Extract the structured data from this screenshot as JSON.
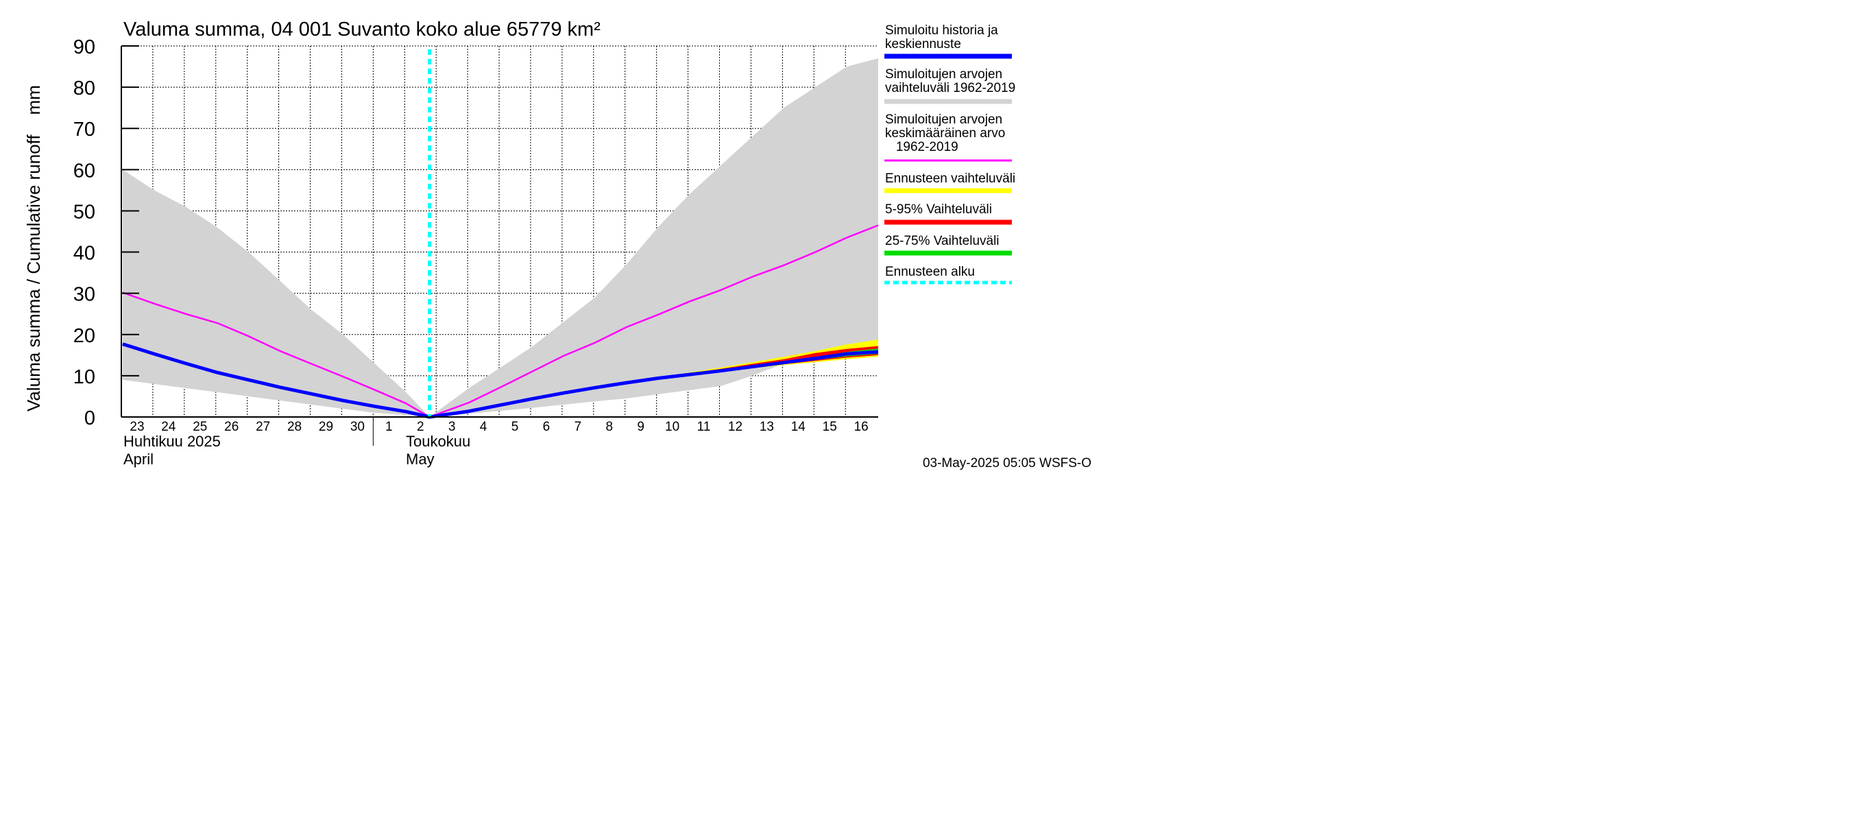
{
  "chart_data": {
    "type": "area",
    "title": "Valuma summa, 04 001 Suvanto koko alue 65779 km²",
    "ylabel": "Valuma summa / Cumulative runoff    mm",
    "ylim": [
      0,
      90
    ],
    "yticks": [
      0,
      10,
      20,
      30,
      40,
      50,
      60,
      70,
      80,
      90
    ],
    "xlim": [
      "2025-04-22T23:00",
      "2025-05-16T23:59"
    ],
    "grid": true,
    "x_tick_labels": [
      "23",
      "24",
      "25",
      "26",
      "27",
      "28",
      "29",
      "30",
      "1",
      "2",
      "3",
      "4",
      "5",
      "6",
      "7",
      "8",
      "9",
      "10",
      "11",
      "12",
      "13",
      "14",
      "15",
      "16"
    ],
    "month_labels": [
      {
        "name": "Huhtikuu  2025",
        "english": "April"
      },
      {
        "name": "Toukokuu",
        "english": "May"
      }
    ],
    "forecast_start": "2025-05-02T18:00",
    "footer": "03-May-2025 05:05 WSFS-O",
    "legend_position": "right",
    "legend": [
      {
        "label": "Simuloitu historia ja\nkeskiennuste",
        "color": "#0000ff",
        "style": "thick"
      },
      {
        "label": "Simuloitujen arvojen\nvaihteluväli 1962-2019",
        "color": "#d3d3d3",
        "style": "thick"
      },
      {
        "label": "Simuloitujen arvojen\nkeskimääräinen arvo\n   1962-2019",
        "color": "#ff00ff",
        "style": "thin"
      },
      {
        "label": "Ennusteen vaihteluväli",
        "color": "#ffff00",
        "style": "thick"
      },
      {
        "label": "5-95% Vaihteluväli",
        "color": "#ff0000",
        "style": "thick"
      },
      {
        "label": "25-75% Vaihteluväli",
        "color": "#00dd00",
        "style": "thick"
      },
      {
        "label": "Ennusteen alku",
        "color": "#00ffff",
        "style": "dashed"
      }
    ],
    "series": [
      {
        "name": "Simuloitujen arvojen vaihteluväli 1962-2019 (max)",
        "color": "#d3d3d3",
        "x": [
          "2025-04-23",
          "2025-04-24",
          "2025-04-25",
          "2025-04-26",
          "2025-04-27",
          "2025-04-28",
          "2025-04-29",
          "2025-04-30",
          "2025-05-01",
          "2025-05-02",
          "2025-05-02T18:00",
          "2025-05-04",
          "2025-05-05",
          "2025-05-06",
          "2025-05-07",
          "2025-05-08",
          "2025-05-09",
          "2025-05-10",
          "2025-05-11",
          "2025-05-12",
          "2025-05-13",
          "2025-05-14",
          "2025-05-15",
          "2025-05-16",
          "2025-05-16T23:59"
        ],
        "values": [
          60,
          55,
          51,
          46,
          40,
          33,
          26,
          20,
          13,
          6,
          0,
          7,
          12,
          17,
          23,
          29,
          37,
          46,
          54,
          61,
          68,
          75,
          80,
          85,
          87
        ]
      },
      {
        "name": "Simuloitujen arvojen vaihteluväli 1962-2019 (min)",
        "color": "#d3d3d3",
        "x": [
          "2025-04-23",
          "2025-04-24",
          "2025-04-25",
          "2025-04-26",
          "2025-04-27",
          "2025-04-28",
          "2025-04-29",
          "2025-04-30",
          "2025-05-01",
          "2025-05-02",
          "2025-05-02T18:00",
          "2025-05-04",
          "2025-05-05",
          "2025-05-06",
          "2025-05-07",
          "2025-05-08",
          "2025-05-09",
          "2025-05-10",
          "2025-05-11",
          "2025-05-12",
          "2025-05-13",
          "2025-05-14",
          "2025-05-15",
          "2025-05-16",
          "2025-05-16T23:59"
        ],
        "values": [
          9,
          8,
          7,
          6,
          5,
          4,
          3,
          2,
          1,
          0.5,
          0,
          0.8,
          1.5,
          2.2,
          3,
          3.8,
          4.5,
          5.5,
          6.5,
          7.5,
          10,
          13,
          14,
          15,
          16
        ]
      },
      {
        "name": "Simuloitujen arvojen keskimääräinen arvo 1962-2019",
        "color": "#ff00ff",
        "x": [
          "2025-04-23",
          "2025-04-24",
          "2025-04-25",
          "2025-04-26",
          "2025-04-27",
          "2025-04-28",
          "2025-04-29",
          "2025-04-30",
          "2025-05-01",
          "2025-05-02",
          "2025-05-02T18:00",
          "2025-05-04",
          "2025-05-05",
          "2025-05-06",
          "2025-05-07",
          "2025-05-08",
          "2025-05-09",
          "2025-05-10",
          "2025-05-11",
          "2025-05-12",
          "2025-05-13",
          "2025-05-14",
          "2025-05-15",
          "2025-05-16",
          "2025-05-16T23:59"
        ],
        "values": [
          30.2,
          27.5,
          25,
          22.8,
          19.6,
          16,
          12.9,
          9.8,
          6.6,
          3.3,
          0,
          3.5,
          7.2,
          11,
          14.8,
          18,
          21.8,
          24.8,
          28,
          30.8,
          34,
          36.8,
          40,
          43.5,
          46.5
        ]
      },
      {
        "name": "Simuloitu historia ja keskiennuste",
        "color": "#0000ff",
        "x": [
          "2025-04-23",
          "2025-04-24",
          "2025-04-25",
          "2025-04-26",
          "2025-04-27",
          "2025-04-28",
          "2025-04-29",
          "2025-04-30",
          "2025-05-01",
          "2025-05-02",
          "2025-05-02T18:00",
          "2025-05-04",
          "2025-05-05",
          "2025-05-06",
          "2025-05-07",
          "2025-05-08",
          "2025-05-09",
          "2025-05-10",
          "2025-05-11",
          "2025-05-12",
          "2025-05-13",
          "2025-05-14",
          "2025-05-15",
          "2025-05-16",
          "2025-05-16T23:59"
        ],
        "values": [
          17.7,
          15.3,
          13,
          10.8,
          9,
          7.2,
          5.6,
          4,
          2.6,
          1.3,
          0,
          1.4,
          2.9,
          4.4,
          5.8,
          7.1,
          8.3,
          9.4,
          10.3,
          11.2,
          12.2,
          13.2,
          14.2,
          15.3,
          15.8
        ]
      },
      {
        "name": "Ennusteen vaihteluväli (max)",
        "color": "#ffff00",
        "x": [
          "2025-05-02T18:00",
          "2025-05-04",
          "2025-05-05",
          "2025-05-06",
          "2025-05-07",
          "2025-05-08",
          "2025-05-09",
          "2025-05-10",
          "2025-05-11",
          "2025-05-12",
          "2025-05-13",
          "2025-05-14",
          "2025-05-15",
          "2025-05-16",
          "2025-05-16T23:59"
        ],
        "values": [
          0,
          1.5,
          3.0,
          4.5,
          5.9,
          7.2,
          8.4,
          9.6,
          10.8,
          12.0,
          13.3,
          14.6,
          16.0,
          17.6,
          18.8
        ]
      },
      {
        "name": "Ennusteen vaihteluväli (min)",
        "color": "#ffff00",
        "x": [
          "2025-05-02T18:00",
          "2025-05-04",
          "2025-05-05",
          "2025-05-06",
          "2025-05-07",
          "2025-05-08",
          "2025-05-09",
          "2025-05-10",
          "2025-05-11",
          "2025-05-12",
          "2025-05-13",
          "2025-05-14",
          "2025-05-15",
          "2025-05-16",
          "2025-05-16T23:59"
        ],
        "values": [
          0,
          1.3,
          2.8,
          4.3,
          5.7,
          7.0,
          8.2,
          9.2,
          10.1,
          10.9,
          11.8,
          12.6,
          13.3,
          14.0,
          14.6
        ]
      },
      {
        "name": "5-95% Vaihteluväli (max)",
        "color": "#ff0000",
        "x": [
          "2025-05-02T18:00",
          "2025-05-04",
          "2025-05-05",
          "2025-05-06",
          "2025-05-07",
          "2025-05-08",
          "2025-05-09",
          "2025-05-10",
          "2025-05-11",
          "2025-05-12",
          "2025-05-13",
          "2025-05-14",
          "2025-05-15",
          "2025-05-16",
          "2025-05-16T23:59"
        ],
        "values": [
          0,
          1.45,
          2.95,
          4.45,
          5.85,
          7.15,
          8.35,
          9.5,
          10.6,
          11.7,
          12.9,
          14.0,
          15.5,
          16.5,
          17.2
        ]
      },
      {
        "name": "5-95% Vaihteluväli (min)",
        "color": "#ff0000",
        "x": [
          "2025-05-02T18:00",
          "2025-05-04",
          "2025-05-05",
          "2025-05-06",
          "2025-05-07",
          "2025-05-08",
          "2025-05-09",
          "2025-05-10",
          "2025-05-11",
          "2025-05-12",
          "2025-05-13",
          "2025-05-14",
          "2025-05-15",
          "2025-05-16",
          "2025-05-16T23:59"
        ],
        "values": [
          0,
          1.35,
          2.85,
          4.35,
          5.75,
          7.05,
          8.25,
          9.3,
          10.2,
          11.0,
          11.9,
          12.8,
          13.6,
          14.4,
          15.0
        ]
      },
      {
        "name": "25-75% Vaihteluväli (max)",
        "color": "#00dd00",
        "x": [
          "2025-05-02T18:00",
          "2025-05-04",
          "2025-05-05",
          "2025-05-06",
          "2025-05-07",
          "2025-05-08",
          "2025-05-09",
          "2025-05-10",
          "2025-05-11",
          "2025-05-12",
          "2025-05-13",
          "2025-05-14",
          "2025-05-15",
          "2025-05-16",
          "2025-05-16T23:59"
        ],
        "values": [
          0,
          1.42,
          2.92,
          4.42,
          5.82,
          7.12,
          8.32,
          9.45,
          10.45,
          11.4,
          12.4,
          13.4,
          14.5,
          15.8,
          16.6
        ]
      },
      {
        "name": "25-75% Vaihteluväli (min)",
        "color": "#00dd00",
        "x": [
          "2025-05-02T18:00",
          "2025-05-04",
          "2025-05-05",
          "2025-05-06",
          "2025-05-07",
          "2025-05-08",
          "2025-05-09",
          "2025-05-10",
          "2025-05-11",
          "2025-05-12",
          "2025-05-13",
          "2025-05-14",
          "2025-05-15",
          "2025-05-16",
          "2025-05-16T23:59"
        ],
        "values": [
          0,
          1.38,
          2.88,
          4.38,
          5.78,
          7.08,
          8.28,
          9.35,
          10.25,
          11.1,
          12.0,
          12.9,
          13.8,
          14.7,
          15.3
        ]
      }
    ]
  }
}
